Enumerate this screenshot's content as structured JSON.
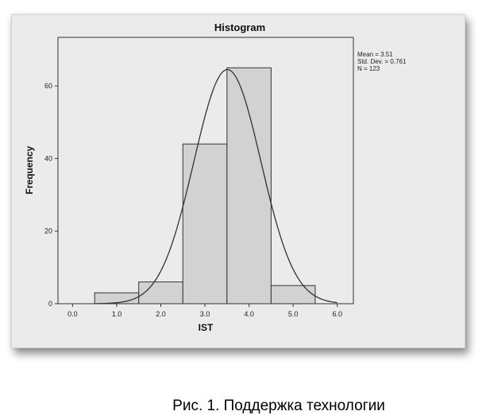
{
  "chart_data": {
    "type": "bar",
    "title": "Histogram",
    "xlabel": "IST",
    "ylabel": "Frequency",
    "x_ticks": [
      "0.0",
      "1.0",
      "2.0",
      "3.0",
      "4.0",
      "5.0",
      "6.0"
    ],
    "y_ticks": [
      "0",
      "20",
      "40",
      "60"
    ],
    "xlim": [
      -0.5,
      6.3
    ],
    "ylim": [
      0,
      74
    ],
    "bin_width": 1.0,
    "bins": [
      {
        "center": 1.0,
        "value": 3
      },
      {
        "center": 2.0,
        "value": 6
      },
      {
        "center": 3.0,
        "value": 44
      },
      {
        "center": 4.0,
        "value": 65
      },
      {
        "center": 5.0,
        "value": 5
      }
    ],
    "normal_curve": {
      "mean": 3.51,
      "sd": 0.761,
      "n": 123
    },
    "stats": {
      "mean": "Mean = 3.51",
      "sd": "Std. Dev. = 0.761",
      "n": "N = 123"
    },
    "bar_color": "#d2d2d2",
    "plot_background": "#ebebeb",
    "legend_position": "right"
  },
  "caption": "Рис. 1. Поддержка технологии"
}
